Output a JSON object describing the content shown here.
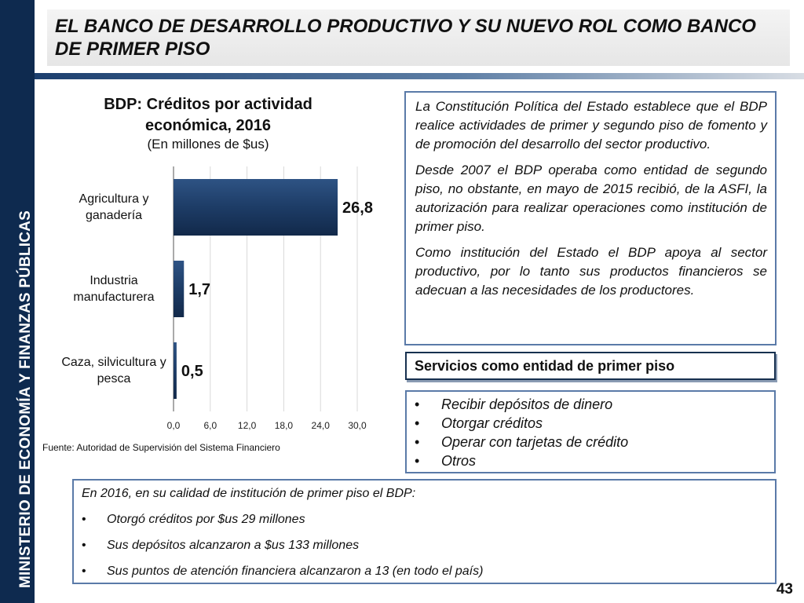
{
  "sidebar": {
    "text": "MINISTERIO DE ECONOMÍA Y FINANZAS PÚBLICAS"
  },
  "header": {
    "title": "EL BANCO DE DESARROLLO PRODUCTIVO Y SU NUEVO ROL COMO BANCO DE PRIMER PISO"
  },
  "chart_data": {
    "type": "bar",
    "orientation": "horizontal",
    "title": "BDP: Créditos por actividad económica, 2016",
    "subtitle": "(En millones de $us)",
    "categories": [
      "Agricultura y ganadería",
      "Industria manufacturera",
      "Caza, silvicultura y pesca"
    ],
    "values": [
      26.8,
      1.7,
      0.5
    ],
    "value_labels": [
      "26,8",
      "1,7",
      "0,5"
    ],
    "xlim": [
      0,
      30
    ],
    "xticks": [
      "0,0",
      "6,0",
      "12,0",
      "18,0",
      "24,0",
      "30,0"
    ],
    "grid": true,
    "bar_color": "#1d3c66"
  },
  "chart_source": "Fuente: Autoridad de Supervisión del Sistema Financiero",
  "constitution": {
    "paragraphs": [
      "La Constitución Política del Estado establece que el BDP realice actividades de primer y segundo piso de fomento y de promoción del desarrollo del sector productivo.",
      "Desde 2007 el BDP operaba como entidad de segundo piso, no obstante, en mayo de 2015 recibió, de la ASFI, la autorización para realizar operaciones como institución de primer piso.",
      "Como institución del Estado el BDP apoya al sector productivo, por lo tanto sus productos financieros se adecuan a las necesidades de los productores."
    ]
  },
  "services": {
    "title": "Servicios como entidad de primer piso",
    "items": [
      "Recibir depósitos de dinero",
      "Otorgar créditos",
      "Operar con tarjetas de crédito",
      "Otros"
    ]
  },
  "summary2016": {
    "intro": "En 2016, en su calidad de institución de primer piso el BDP:",
    "items": [
      "Otorgó créditos por $us 29 millones",
      "Sus depósitos alcanzaron a $us 133 millones",
      "Sus puntos de atención financiera alcanzaron a 13 (en todo el país)"
    ]
  },
  "bullet_char": "•",
  "page_number": "43"
}
